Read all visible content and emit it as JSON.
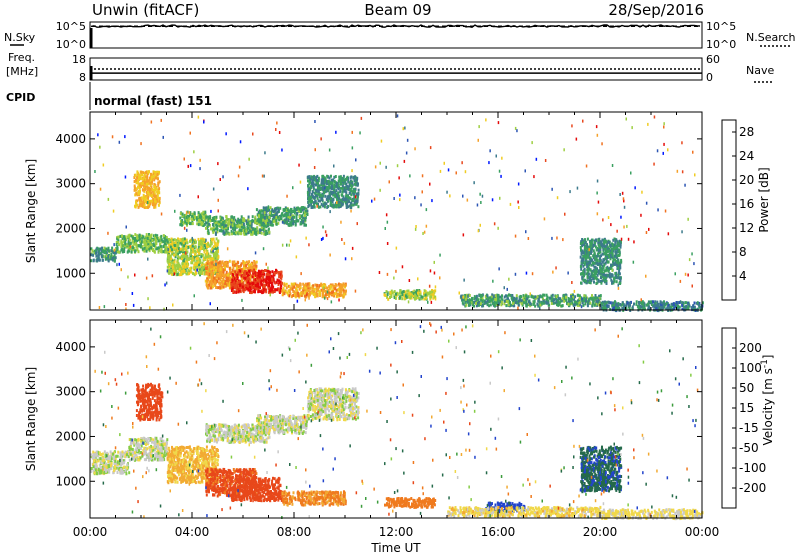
{
  "header": {
    "station": "Unwin (fitACF)",
    "beam": "Beam 09",
    "date": "28/Sep/2016"
  },
  "status_panels": {
    "nsky": {
      "label": "N.Sky",
      "tick_top": "10^5",
      "tick_bottom": "10^0"
    },
    "nsearch": {
      "label": "N.Search",
      "tick_top": "10^5",
      "tick_bottom": "10^0"
    },
    "freq": {
      "label_line1": "Freq.",
      "label_line2": "[MHz]",
      "tick_top": "18",
      "tick_bottom": "8",
      "value_mhz": 11.1
    },
    "nave": {
      "label": "Nave",
      "tick_top": "60",
      "tick_bottom": "0",
      "value": 30
    },
    "cpid": {
      "label": "CPID",
      "mode_text": "normal (fast) 151"
    }
  },
  "chart_data": [
    {
      "type": "heatmap",
      "panel": "power",
      "ylabel": "Slant Range [km]",
      "colorbar_label": "Power [dB]",
      "ylim": [
        180,
        4600
      ],
      "yticks": [
        1000,
        2000,
        3000,
        4000
      ],
      "colorbar_ticks": [
        4,
        8,
        12,
        16,
        20,
        24,
        28
      ],
      "colorbar_range": [
        0,
        30
      ],
      "colors": [
        "#0018ff",
        "#2c55b4",
        "#3c7a8c",
        "#3aa060",
        "#9ecf43",
        "#f0cc22",
        "#f5a12a",
        "#f07220",
        "#e8481e",
        "#e40a0a"
      ],
      "features": [
        {
          "hours": [
            0.0,
            1.0
          ],
          "range_km": [
            1300,
            1600
          ],
          "value_db": 10
        },
        {
          "hours": [
            1.0,
            3.0
          ],
          "range_km": [
            1500,
            1900
          ],
          "value_db": 12
        },
        {
          "hours": [
            1.7,
            2.7
          ],
          "range_km": [
            2500,
            3300
          ],
          "value_db": 18
        },
        {
          "hours": [
            3.0,
            5.0
          ],
          "range_km": [
            1000,
            1800
          ],
          "value_db": 14
        },
        {
          "hours": [
            3.5,
            4.5
          ],
          "range_km": [
            2100,
            2400
          ],
          "value_db": 12
        },
        {
          "hours": [
            4.5,
            7.0
          ],
          "range_km": [
            1900,
            2300
          ],
          "value_db": 11
        },
        {
          "hours": [
            6.5,
            8.5
          ],
          "range_km": [
            2100,
            2500
          ],
          "value_db": 10
        },
        {
          "hours": [
            8.5,
            10.5
          ],
          "range_km": [
            2500,
            3200
          ],
          "value_db": 9
        },
        {
          "hours": [
            4.5,
            6.5
          ],
          "range_km": [
            700,
            1300
          ],
          "value_db": 20
        },
        {
          "hours": [
            5.5,
            7.5
          ],
          "range_km": [
            600,
            1100
          ],
          "value_db": 27
        },
        {
          "hours": [
            7.5,
            10.0
          ],
          "range_km": [
            500,
            800
          ],
          "value_db": 19
        },
        {
          "hours": [
            11.5,
            13.5
          ],
          "range_km": [
            450,
            650
          ],
          "value_db": 14
        },
        {
          "hours": [
            14.5,
            20.0
          ],
          "range_km": [
            300,
            550
          ],
          "value_db": 10
        },
        {
          "hours": [
            19.2,
            20.8
          ],
          "range_km": [
            800,
            1800
          ],
          "value_db": 9
        },
        {
          "hours": [
            20.0,
            24.0
          ],
          "range_km": [
            200,
            400
          ],
          "value_db": 8
        }
      ]
    },
    {
      "type": "heatmap",
      "panel": "velocity",
      "ylabel": "Slant Range [km]",
      "xlabel": "Time UT",
      "colorbar_label": "Velocity [m s^-1]",
      "ylim": [
        180,
        4600
      ],
      "yticks": [
        1000,
        2000,
        3000,
        4000
      ],
      "colorbar_ticks": [
        200,
        100,
        50,
        15,
        -15,
        -50,
        -100,
        -200
      ],
      "colorbar_range": [
        -250,
        250
      ],
      "colors": [
        "#0000ee",
        "#2244cc",
        "#256a4a",
        "#3c9c3c",
        "#84cc45",
        "#c9c9c9",
        "#f0d84a",
        "#f2aa32",
        "#ef7a1e",
        "#e8481a",
        "#e11414"
      ],
      "features": [
        {
          "hours": [
            0.0,
            1.5
          ],
          "range_km": [
            1200,
            1700
          ],
          "value_ms": 0
        },
        {
          "hours": [
            1.5,
            3.0
          ],
          "range_km": [
            1500,
            2000
          ],
          "value_ms": 0
        },
        {
          "hours": [
            1.8,
            2.8
          ],
          "range_km": [
            2400,
            3200
          ],
          "value_ms": -240
        },
        {
          "hours": [
            3.0,
            5.0
          ],
          "range_km": [
            1000,
            1800
          ],
          "value_ms": -60
        },
        {
          "hours": [
            4.5,
            7.0
          ],
          "range_km": [
            1900,
            2300
          ],
          "value_ms": 0
        },
        {
          "hours": [
            6.5,
            8.5
          ],
          "range_km": [
            2100,
            2500
          ],
          "value_ms": 0
        },
        {
          "hours": [
            8.5,
            10.5
          ],
          "range_km": [
            2400,
            3100
          ],
          "value_ms": 0
        },
        {
          "hours": [
            4.5,
            6.5
          ],
          "range_km": [
            700,
            1300
          ],
          "value_ms": -220
        },
        {
          "hours": [
            5.5,
            7.5
          ],
          "range_km": [
            600,
            1100
          ],
          "value_ms": -250
        },
        {
          "hours": [
            7.5,
            10.0
          ],
          "range_km": [
            500,
            800
          ],
          "value_ms": -110
        },
        {
          "hours": [
            11.5,
            13.5
          ],
          "range_km": [
            450,
            650
          ],
          "value_ms": -160
        },
        {
          "hours": [
            15.5,
            17.0
          ],
          "range_km": [
            350,
            550
          ],
          "value_ms": 220
        },
        {
          "hours": [
            14.0,
            20.0
          ],
          "range_km": [
            250,
            450
          ],
          "value_ms": -30
        },
        {
          "hours": [
            19.2,
            20.8
          ],
          "range_km": [
            800,
            1800
          ],
          "value_ms": 190
        },
        {
          "hours": [
            20.0,
            24.0
          ],
          "range_km": [
            200,
            400
          ],
          "value_ms": -20
        }
      ]
    }
  ],
  "x_axis": {
    "label": "Time UT",
    "range_hours": [
      0,
      24
    ],
    "ticks": [
      {
        "hour": 0,
        "label": "00:00"
      },
      {
        "hour": 4,
        "label": "04:00"
      },
      {
        "hour": 8,
        "label": "08:00"
      },
      {
        "hour": 12,
        "label": "12:00"
      },
      {
        "hour": 16,
        "label": "16:00"
      },
      {
        "hour": 20,
        "label": "20:00"
      },
      {
        "hour": 24,
        "label": "00:00"
      }
    ]
  }
}
